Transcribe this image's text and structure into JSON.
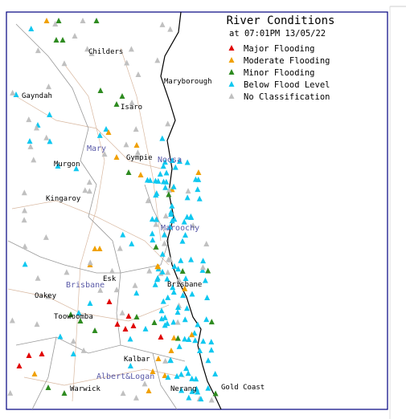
{
  "title": "River Conditions",
  "timestamp": "at 07:01PM 13/05/22",
  "legend": [
    {
      "label": "Major Flooding",
      "color": "#e00000"
    },
    {
      "label": "Moderate Flooding",
      "color": "#f0a000"
    },
    {
      "label": "Minor Flooding",
      "color": "#2e8b20"
    },
    {
      "label": "Below Flood Level",
      "color": "#10c8f0"
    },
    {
      "label": "No Classification",
      "color": "#c0c0c0"
    }
  ],
  "places": [
    "Childers",
    "Maryborough",
    "Gayndah",
    "Isaro",
    "Gympie",
    "Murgon",
    "Kingaroy",
    "Esk",
    "Brisbane",
    "Oakey",
    "Toowoomba",
    "Kalbar",
    "Warwick",
    "Nerang",
    "Gold Coast"
  ],
  "basins": [
    "Mary",
    "Noosa",
    "Maroochy",
    "Brisbane",
    "Albert&Logan"
  ]
}
